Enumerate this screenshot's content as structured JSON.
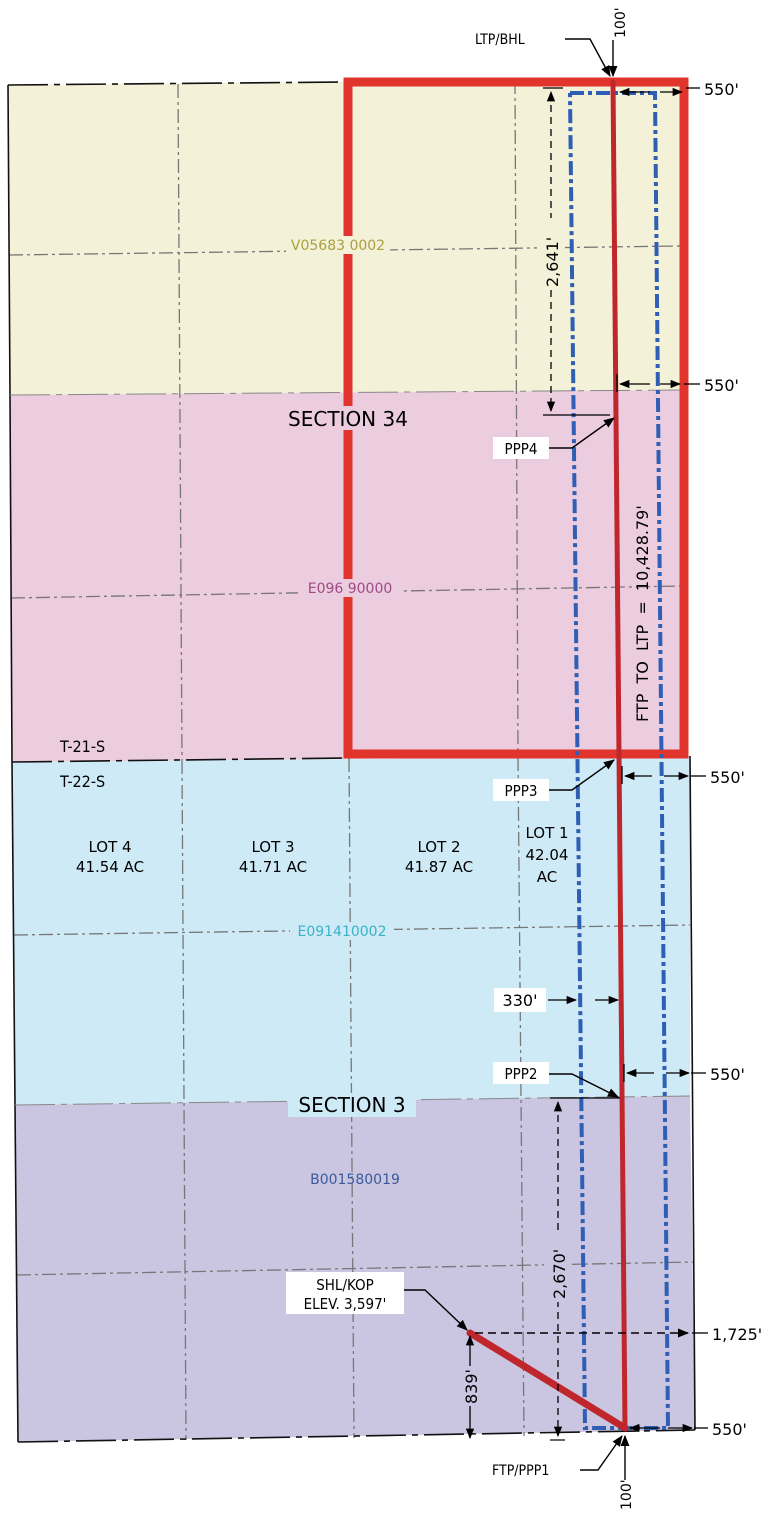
{
  "tracts": {
    "north": {
      "id": "V05683 0002",
      "color": "#f3f2d8"
    },
    "middle": {
      "id": "E096 90000",
      "color": "#ecccdf"
    },
    "south_upper": {
      "id": "E091410002",
      "color": "#cfeaf7"
    },
    "south_lower": {
      "id": "B001580019",
      "color": "#cac5e1"
    }
  },
  "tract_label_colors": {
    "north": "#a8a040",
    "middle": "#a04a86",
    "south_upper": "#3ab2c8",
    "south_lower": "#3a5a9c"
  },
  "sections": {
    "upper": "SECTION 34",
    "lower": "SECTION 3"
  },
  "townships": {
    "upper": "T-21-S",
    "lower": "T-22-S"
  },
  "lots": [
    {
      "name": "LOT 4",
      "area": "41.54 AC"
    },
    {
      "name": "LOT 3",
      "area": "41.71 AC"
    },
    {
      "name": "LOT 2",
      "area": "41.87 AC"
    },
    {
      "name": "LOT 1",
      "area": "42.04",
      "area2": "AC"
    }
  ],
  "points": {
    "ltp": "LTP/BHL",
    "ppp4": "PPP4",
    "ppp3": "PPP3",
    "ppp2": "PPP2",
    "shl": "SHL/KOP",
    "elev": "ELEV. 3,597'",
    "ftp": "FTP/PPP1"
  },
  "dimensions": {
    "top_offset": "100'",
    "bottom_offset": "100'",
    "east_550_1": "550'",
    "east_550_2": "550'",
    "east_550_3": "550'",
    "east_550_4": "550'",
    "east_550_5": "550'",
    "east_1725": "1,725'",
    "north_2641": "2,641'",
    "south_2670": "2,670'",
    "setback_330": "330'",
    "kop_839": "839'",
    "lateral_length": "FTP  TO  LTP  =  10,428.79'"
  },
  "colors": {
    "wellbore": "#c0272d",
    "spacing_unit": "#e0342c",
    "setback": "#2e5fb4",
    "gridline": "#777777"
  }
}
